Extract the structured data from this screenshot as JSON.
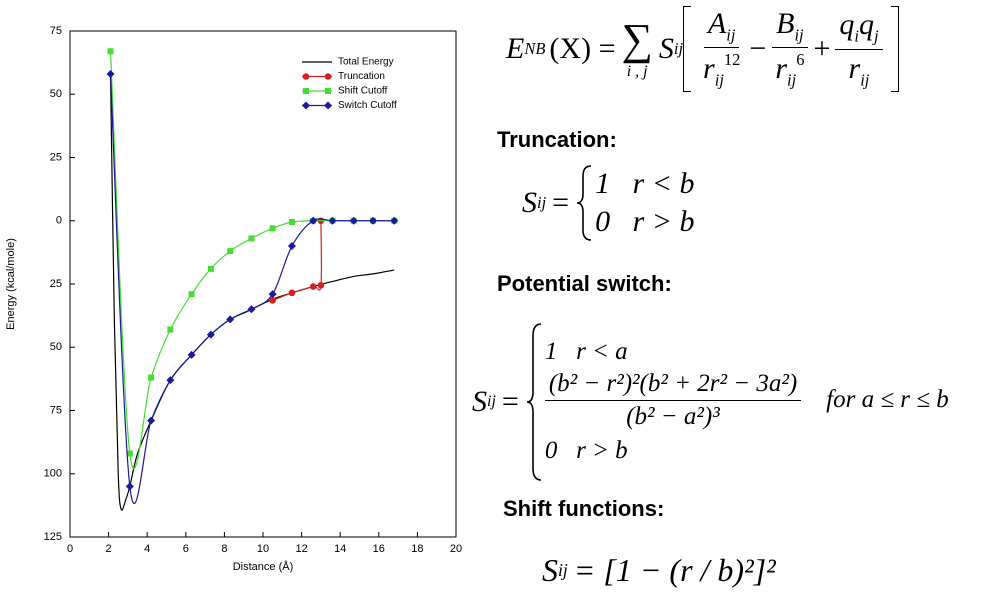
{
  "chart_data": {
    "type": "line",
    "xlabel": "Distance (Å)",
    "ylabel": "Energy (kcal/mole)",
    "xlim": [
      0,
      20
    ],
    "xticks": [
      0,
      2,
      4,
      6,
      8,
      10,
      12,
      14,
      16,
      18,
      20
    ],
    "ylim": [
      -125,
      75
    ],
    "yticks": [
      75,
      50,
      25,
      0,
      {
        "value": -25,
        "label": "25"
      },
      {
        "value": -50,
        "label": "50"
      },
      {
        "value": -75,
        "label": "75"
      },
      {
        "value": -100,
        "label": "100"
      },
      {
        "value": -125,
        "label": "125"
      }
    ],
    "legend": "upper right",
    "series": [
      {
        "name": "Total Energy",
        "color": "#000000",
        "marker": "none",
        "x": [
          2.1,
          2.3,
          2.5,
          2.65,
          2.9,
          3.1,
          3.5,
          4.2,
          5.2,
          6.3,
          7.3,
          8.3,
          9.4,
          10.5,
          11.5,
          12.6,
          13.6,
          14.7,
          15.7,
          16.8
        ],
        "values": [
          58,
          -40,
          -100,
          -114,
          -110,
          -105,
          -92,
          -79,
          -63,
          -53,
          -45,
          -39,
          -35,
          -31,
          -28.5,
          -26,
          -24,
          -22,
          -21,
          -19.5
        ]
      },
      {
        "name": "Truncation",
        "color": "#d62020",
        "marker": "circle",
        "x": [
          10.5,
          11.5,
          12.6,
          13,
          13
        ],
        "values": [
          -31.5,
          -28.5,
          -26,
          -25.5,
          0
        ]
      },
      {
        "name": "Shift Cutoff",
        "color": "#44dd33",
        "marker": "square",
        "x": [
          2.1,
          3.1,
          4.2,
          5.2,
          6.3,
          7.3,
          8.3,
          9.4,
          10.5,
          11.5,
          12.6,
          13.6,
          14.7,
          15.7,
          16.8
        ],
        "values": [
          67,
          -92,
          -62,
          -43,
          -29,
          -19,
          -12,
          -7,
          -3,
          -0.5,
          0,
          0,
          0,
          0,
          0
        ]
      },
      {
        "name": "Switch Cutoff",
        "color": "#1a1a9a",
        "marker": "diamond",
        "x": [
          2.1,
          3.1,
          4.2,
          5.2,
          6.3,
          7.3,
          8.3,
          9.4,
          10.5,
          11.5,
          12.6,
          13.6,
          14.7,
          15.7,
          16.8
        ],
        "values": [
          58,
          -105,
          -79,
          -63,
          -53,
          -45,
          -39,
          -35,
          -29,
          -10,
          0,
          0,
          0,
          0,
          0
        ]
      }
    ]
  },
  "equation": {
    "E": "E",
    "E_sub": "NB",
    "arg": "(X) =",
    "sum": "∑",
    "sum_sub": "i , j",
    "S": "S",
    "S_sub": "ij",
    "t1": {
      "num": "A",
      "num_sub": "ij",
      "den": "r",
      "den_sub": "ij",
      "den_sup": "12"
    },
    "op1": "−",
    "t2": {
      "num": "B",
      "num_sub": "ij",
      "den": "r",
      "den_sub": "ij",
      "den_sup": "6"
    },
    "op2": "+",
    "t3": {
      "num": "q",
      "num_sub": "i",
      "num2": "q",
      "num2_sub": "j",
      "den": "r",
      "den_sub": "ij"
    }
  },
  "truncation": {
    "heading": "Truncation:",
    "S": "S",
    "S_sub": "ij",
    "eq": "=",
    "cases": [
      "1   r < b",
      "0   r > b"
    ]
  },
  "switch": {
    "heading": "Potential switch:",
    "S": "S",
    "S_sub": "ij",
    "eq": "=",
    "case1": "1   r < a",
    "frac_num": "(b² − r²)²(b² + 2r² − 3a²)",
    "frac_den": "(b² − a²)³",
    "condition": "for a ≤ r ≤ b",
    "case3": "0   r > b"
  },
  "shift": {
    "heading": "Shift functions:",
    "S": "S",
    "S_sub": "ij",
    "rhs": "= [1 − (r / b)²]²"
  }
}
